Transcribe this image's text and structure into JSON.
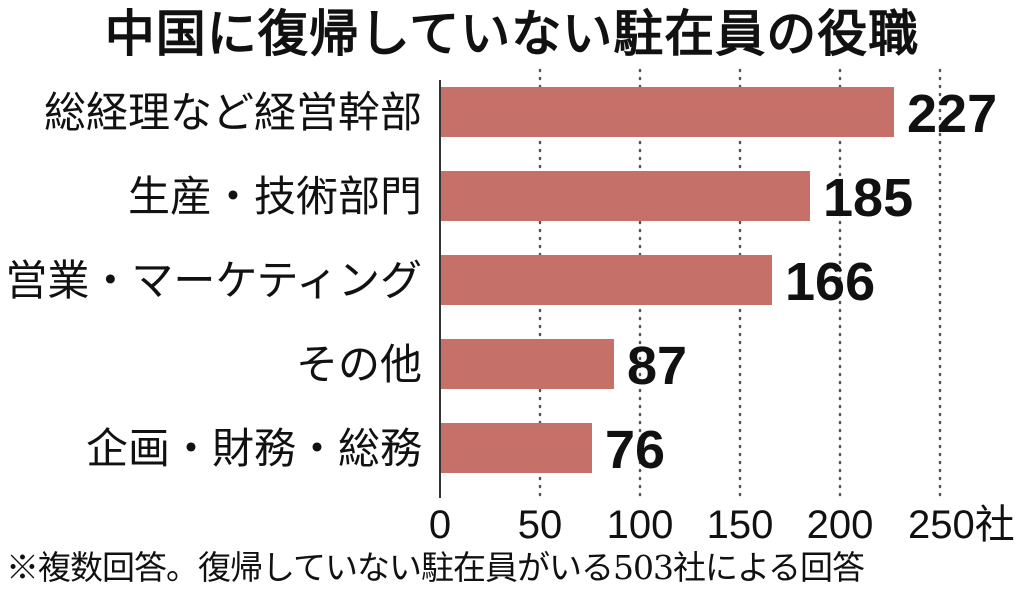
{
  "chart_data": {
    "type": "bar",
    "orientation": "horizontal",
    "title": "中国に復帰していない駐在員の役職",
    "categories": [
      "総経理など経営幹部",
      "生産・技術部門",
      "営業・マーケティング",
      "その他",
      "企画・財務・総務"
    ],
    "values": [
      227,
      185,
      166,
      87,
      76
    ],
    "data_labels": [
      "227",
      "185",
      "166",
      "87",
      "76"
    ],
    "xlim": [
      0,
      250
    ],
    "x_ticks": [
      {
        "value": 0,
        "label": "0"
      },
      {
        "value": 50,
        "label": "50"
      },
      {
        "value": 100,
        "label": "100"
      },
      {
        "value": 150,
        "label": "150"
      },
      {
        "value": 200,
        "label": "200"
      },
      {
        "value": 250,
        "label": "250社"
      }
    ],
    "grid": "vertical dotted",
    "bar_color": "#c6706a",
    "footnote": "※複数回答。復帰していない駐在員がいる503社による回答"
  }
}
